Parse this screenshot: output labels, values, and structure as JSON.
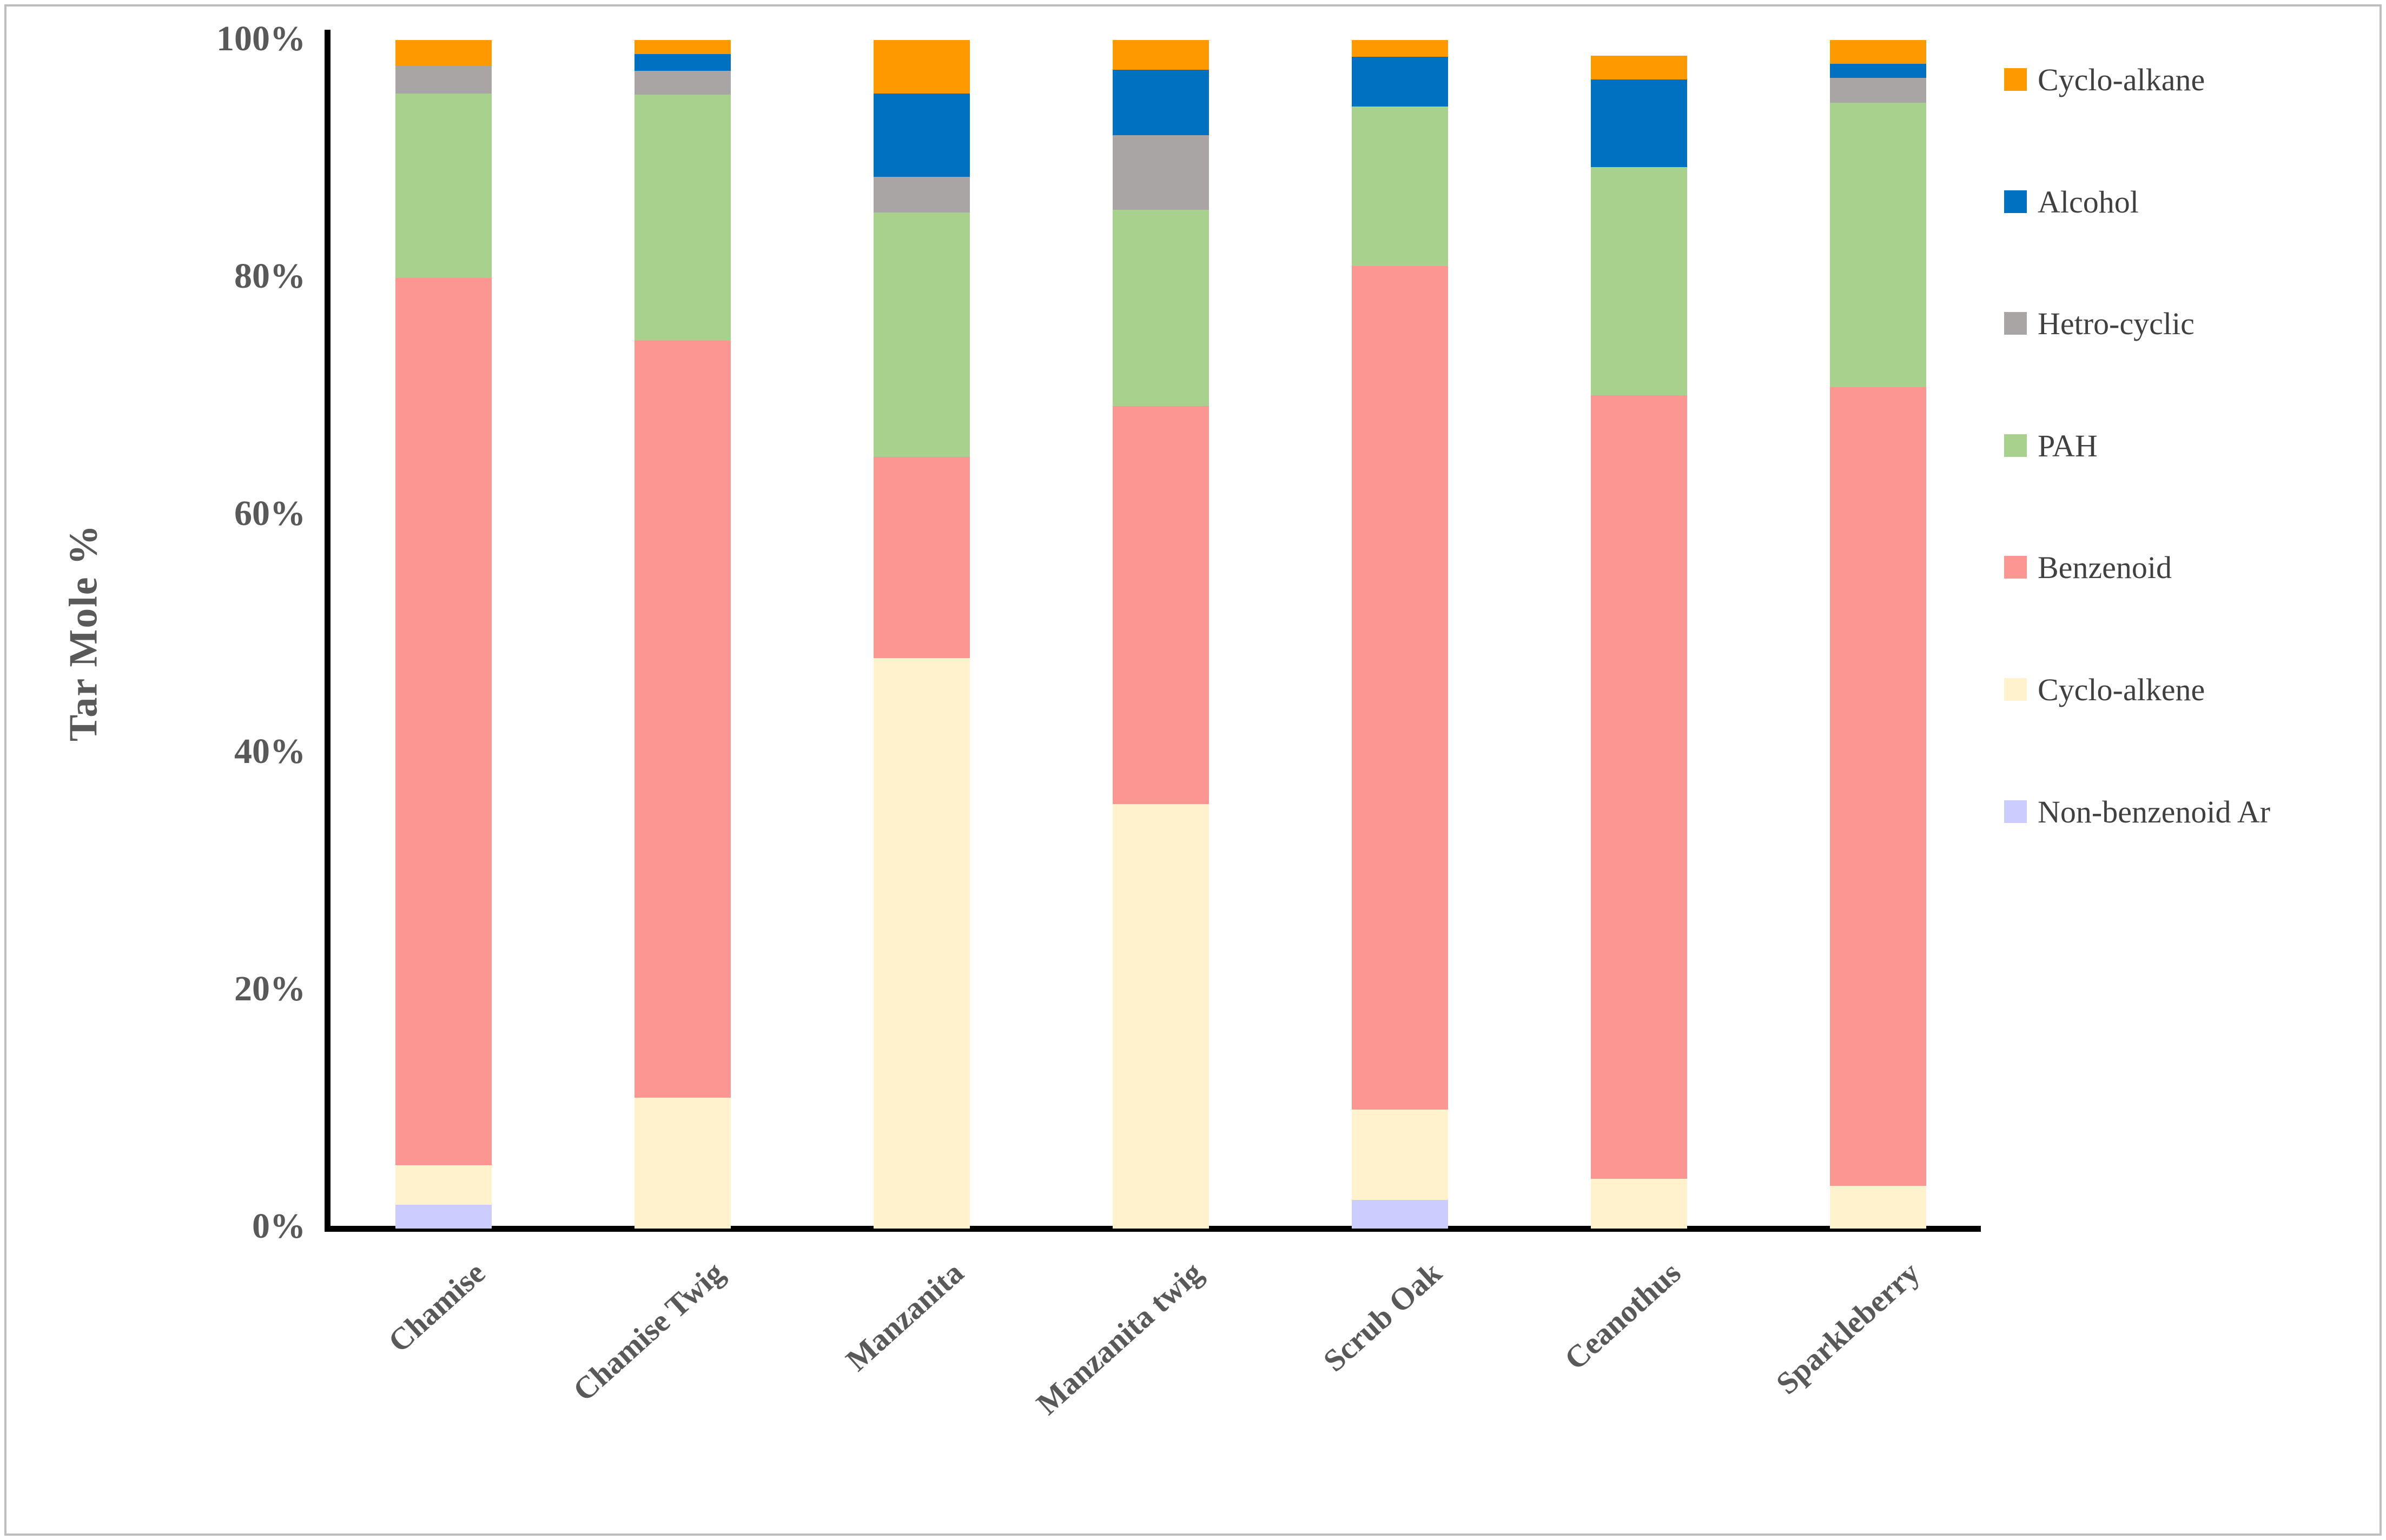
{
  "figure": {
    "border_color": "#bdbdbd",
    "background": "#ffffff",
    "axis_color": "#000000",
    "text_color": "#595959"
  },
  "chart_data": {
    "type": "bar",
    "variant": "100-percent-stacked-column",
    "title": "",
    "xlabel": "",
    "ylabel": "Tar Mole %",
    "ylim": [
      0,
      100
    ],
    "grid": false,
    "legend_position": "right",
    "y_ticks": [
      "100%",
      "80%",
      "60%",
      "40%",
      "20%",
      "0%"
    ],
    "categories": [
      "Chamise",
      "Chamise Twig",
      "Manzanita",
      "Manzanita twig",
      "Scrub Oak",
      "Ceanothus",
      "Sparkleberry"
    ],
    "series": [
      {
        "name": "Non-benzenoid Ar",
        "color": "#CCCCFF",
        "values": [
          2.0,
          0,
          0,
          0,
          2.4,
          0,
          0
        ]
      },
      {
        "name": "Cyclo-alkene",
        "color": "#FFF2CC",
        "values": [
          3.3,
          11.0,
          48.0,
          35.7,
          7.6,
          4.2,
          3.6
        ]
      },
      {
        "name": "Benzenoid",
        "color": "#FC9693",
        "values": [
          74.7,
          63.7,
          16.9,
          33.5,
          71.0,
          65.9,
          67.2
        ]
      },
      {
        "name": "PAH",
        "color": "#A9D18E",
        "values": [
          15.5,
          20.7,
          20.6,
          16.5,
          13.4,
          19.2,
          23.9
        ]
      },
      {
        "name": "Hetro-cyclic",
        "color": "#A9A5A5",
        "values": [
          2.3,
          2.0,
          3.0,
          6.3,
          0,
          0,
          2.1
        ]
      },
      {
        "name": "Alcohol",
        "color": "#0070C0",
        "values": [
          0,
          1.4,
          7.0,
          5.5,
          4.2,
          7.4,
          1.2
        ]
      },
      {
        "name": "Cyclo-alkane",
        "color": "#FF9900",
        "values": [
          2.2,
          1.2,
          4.5,
          2.5,
          1.4,
          2.0,
          2.0
        ]
      }
    ],
    "legend_order": [
      "Cyclo-alkane",
      "Alcohol",
      "Hetro-cyclic",
      "PAH",
      "Benzenoid",
      "Cyclo-alkene",
      "Non-benzenoid Ar"
    ]
  }
}
